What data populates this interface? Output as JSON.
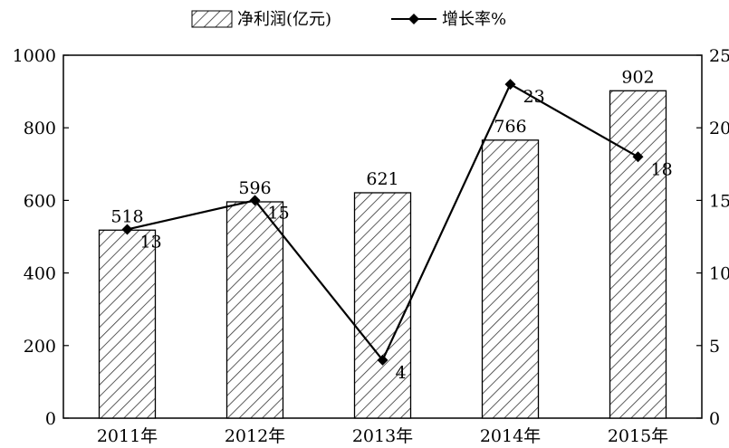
{
  "chart_data": {
    "type": "bar+line",
    "categories": [
      "2011年",
      "2012年",
      "2013年",
      "2014年",
      "2015年"
    ],
    "series": [
      {
        "name": "净利润(亿元)",
        "type": "bar",
        "axis": "left",
        "values": [
          518,
          596,
          621,
          766,
          902
        ],
        "data_labels": [
          "518",
          "596",
          "621",
          "766",
          "902"
        ]
      },
      {
        "name": "增长率%",
        "type": "line",
        "axis": "right",
        "values": [
          13,
          15,
          4,
          23,
          18
        ],
        "data_labels": [
          "13",
          "15",
          "4",
          "23",
          "18"
        ]
      }
    ],
    "y_left": {
      "min": 0,
      "max": 1000,
      "ticks": [
        "0",
        "200",
        "400",
        "600",
        "800",
        "1000"
      ]
    },
    "y_right": {
      "min": 0,
      "max": 25,
      "ticks": [
        "0",
        "5",
        "10",
        "15",
        "20",
        "25"
      ]
    },
    "legend_position": "top",
    "grid": false,
    "colors": {
      "line": "#000000",
      "bar_stroke": "#000000",
      "hatch": "#333333",
      "background": "#ffffff"
    }
  }
}
